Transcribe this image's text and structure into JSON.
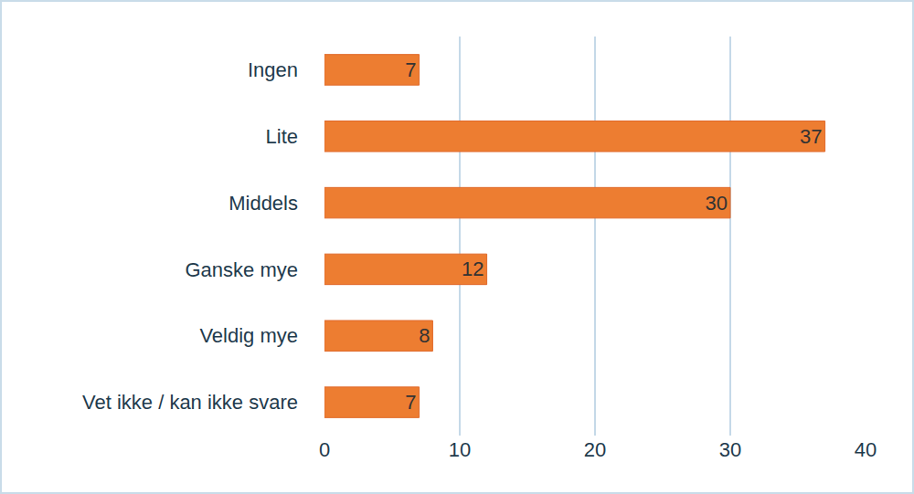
{
  "chart_data": {
    "type": "bar",
    "orientation": "horizontal",
    "categories": [
      "Ingen",
      "Lite",
      "Middels",
      "Ganske mye",
      "Veldig mye",
      "Vet ikke / kan ikke svare"
    ],
    "values": [
      7,
      37,
      30,
      12,
      8,
      7
    ],
    "color": "#ed7d31",
    "xlim": [
      0,
      40
    ],
    "xticks": [
      0,
      10,
      20,
      30,
      40
    ],
    "grid": true,
    "data_labels": true
  }
}
